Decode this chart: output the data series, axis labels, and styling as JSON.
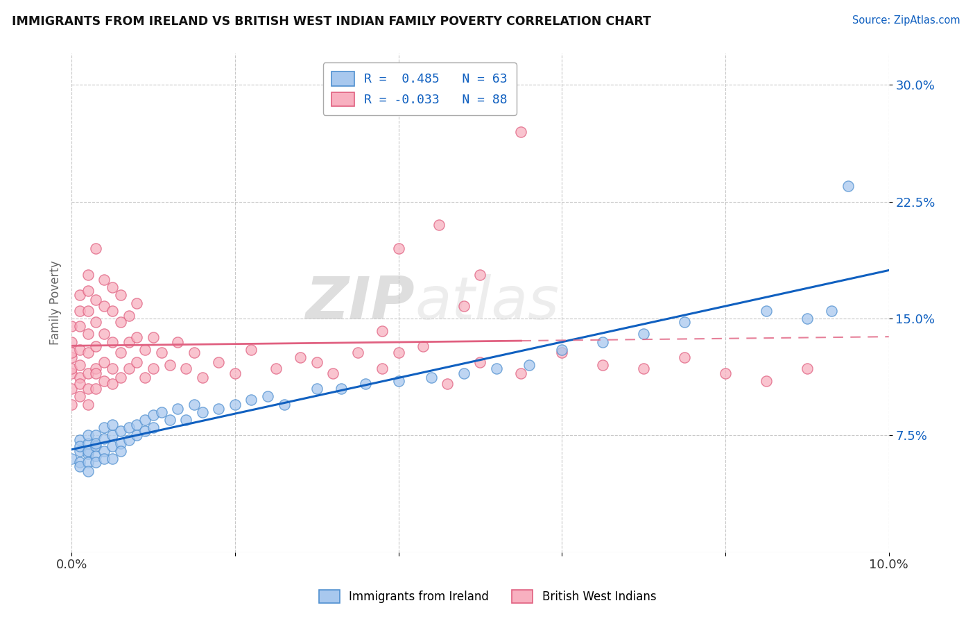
{
  "title": "IMMIGRANTS FROM IRELAND VS BRITISH WEST INDIAN FAMILY POVERTY CORRELATION CHART",
  "source": "Source: ZipAtlas.com",
  "ylabel": "Family Poverty",
  "xlim": [
    0.0,
    0.1
  ],
  "ylim": [
    0.0,
    0.32
  ],
  "xticks": [
    0.0,
    0.02,
    0.04,
    0.06,
    0.08,
    0.1
  ],
  "xticklabels": [
    "0.0%",
    "",
    "",
    "",
    "",
    "10.0%"
  ],
  "ytick_positions": [
    0.075,
    0.15,
    0.225,
    0.3
  ],
  "yticklabels": [
    "7.5%",
    "15.0%",
    "22.5%",
    "30.0%"
  ],
  "blue_fill": "#A8C8EE",
  "blue_edge": "#5090D0",
  "pink_fill": "#F8B0C0",
  "pink_edge": "#E06080",
  "blue_line_color": "#1060C0",
  "pink_line_color": "#E06080",
  "legend_r1": "R =  0.485   N = 63",
  "legend_r2": "R = -0.033   N = 88",
  "legend_label1": "Immigrants from Ireland",
  "legend_label2": "British West Indians",
  "watermark_zip": "ZIP",
  "watermark_atlas": "atlas",
  "blue_scatter_x": [
    0.0,
    0.001,
    0.001,
    0.001,
    0.001,
    0.001,
    0.002,
    0.002,
    0.002,
    0.002,
    0.002,
    0.002,
    0.003,
    0.003,
    0.003,
    0.003,
    0.003,
    0.004,
    0.004,
    0.004,
    0.004,
    0.005,
    0.005,
    0.005,
    0.005,
    0.006,
    0.006,
    0.006,
    0.007,
    0.007,
    0.008,
    0.008,
    0.009,
    0.009,
    0.01,
    0.01,
    0.011,
    0.012,
    0.013,
    0.014,
    0.015,
    0.016,
    0.018,
    0.02,
    0.022,
    0.024,
    0.026,
    0.03,
    0.033,
    0.036,
    0.04,
    0.044,
    0.048,
    0.052,
    0.056,
    0.06,
    0.065,
    0.07,
    0.075,
    0.085,
    0.09,
    0.093,
    0.095
  ],
  "blue_scatter_y": [
    0.06,
    0.065,
    0.058,
    0.072,
    0.055,
    0.068,
    0.063,
    0.07,
    0.058,
    0.075,
    0.065,
    0.052,
    0.068,
    0.062,
    0.075,
    0.058,
    0.07,
    0.073,
    0.065,
    0.08,
    0.06,
    0.075,
    0.068,
    0.082,
    0.06,
    0.078,
    0.07,
    0.065,
    0.072,
    0.08,
    0.082,
    0.075,
    0.085,
    0.078,
    0.08,
    0.088,
    0.09,
    0.085,
    0.092,
    0.085,
    0.095,
    0.09,
    0.092,
    0.095,
    0.098,
    0.1,
    0.095,
    0.105,
    0.105,
    0.108,
    0.11,
    0.112,
    0.115,
    0.118,
    0.12,
    0.13,
    0.135,
    0.14,
    0.148,
    0.155,
    0.15,
    0.155,
    0.235
  ],
  "pink_scatter_x": [
    0.0,
    0.0,
    0.0,
    0.0,
    0.0,
    0.0,
    0.0,
    0.0,
    0.001,
    0.001,
    0.001,
    0.001,
    0.001,
    0.001,
    0.001,
    0.001,
    0.002,
    0.002,
    0.002,
    0.002,
    0.002,
    0.002,
    0.002,
    0.002,
    0.003,
    0.003,
    0.003,
    0.003,
    0.003,
    0.003,
    0.003,
    0.004,
    0.004,
    0.004,
    0.004,
    0.004,
    0.005,
    0.005,
    0.005,
    0.005,
    0.005,
    0.006,
    0.006,
    0.006,
    0.006,
    0.007,
    0.007,
    0.007,
    0.008,
    0.008,
    0.008,
    0.009,
    0.009,
    0.01,
    0.01,
    0.011,
    0.012,
    0.013,
    0.014,
    0.015,
    0.016,
    0.018,
    0.02,
    0.022,
    0.025,
    0.028,
    0.03,
    0.032,
    0.035,
    0.038,
    0.04,
    0.043,
    0.046,
    0.05,
    0.055,
    0.06,
    0.065,
    0.07,
    0.075,
    0.08,
    0.085,
    0.09,
    0.04,
    0.045,
    0.05,
    0.055,
    0.038,
    0.048
  ],
  "pink_scatter_y": [
    0.105,
    0.115,
    0.125,
    0.135,
    0.095,
    0.145,
    0.118,
    0.128,
    0.1,
    0.112,
    0.13,
    0.145,
    0.155,
    0.12,
    0.165,
    0.108,
    0.095,
    0.115,
    0.128,
    0.14,
    0.155,
    0.168,
    0.178,
    0.105,
    0.118,
    0.132,
    0.148,
    0.105,
    0.162,
    0.115,
    0.195,
    0.11,
    0.122,
    0.14,
    0.158,
    0.175,
    0.118,
    0.135,
    0.155,
    0.108,
    0.17,
    0.112,
    0.128,
    0.148,
    0.165,
    0.118,
    0.135,
    0.152,
    0.122,
    0.138,
    0.16,
    0.112,
    0.13,
    0.118,
    0.138,
    0.128,
    0.12,
    0.135,
    0.118,
    0.128,
    0.112,
    0.122,
    0.115,
    0.13,
    0.118,
    0.125,
    0.122,
    0.115,
    0.128,
    0.118,
    0.128,
    0.132,
    0.108,
    0.122,
    0.115,
    0.128,
    0.12,
    0.118,
    0.125,
    0.115,
    0.11,
    0.118,
    0.195,
    0.21,
    0.178,
    0.27,
    0.142,
    0.158
  ],
  "grid_color": "#C8C8C8",
  "bg_color": "#FFFFFF"
}
